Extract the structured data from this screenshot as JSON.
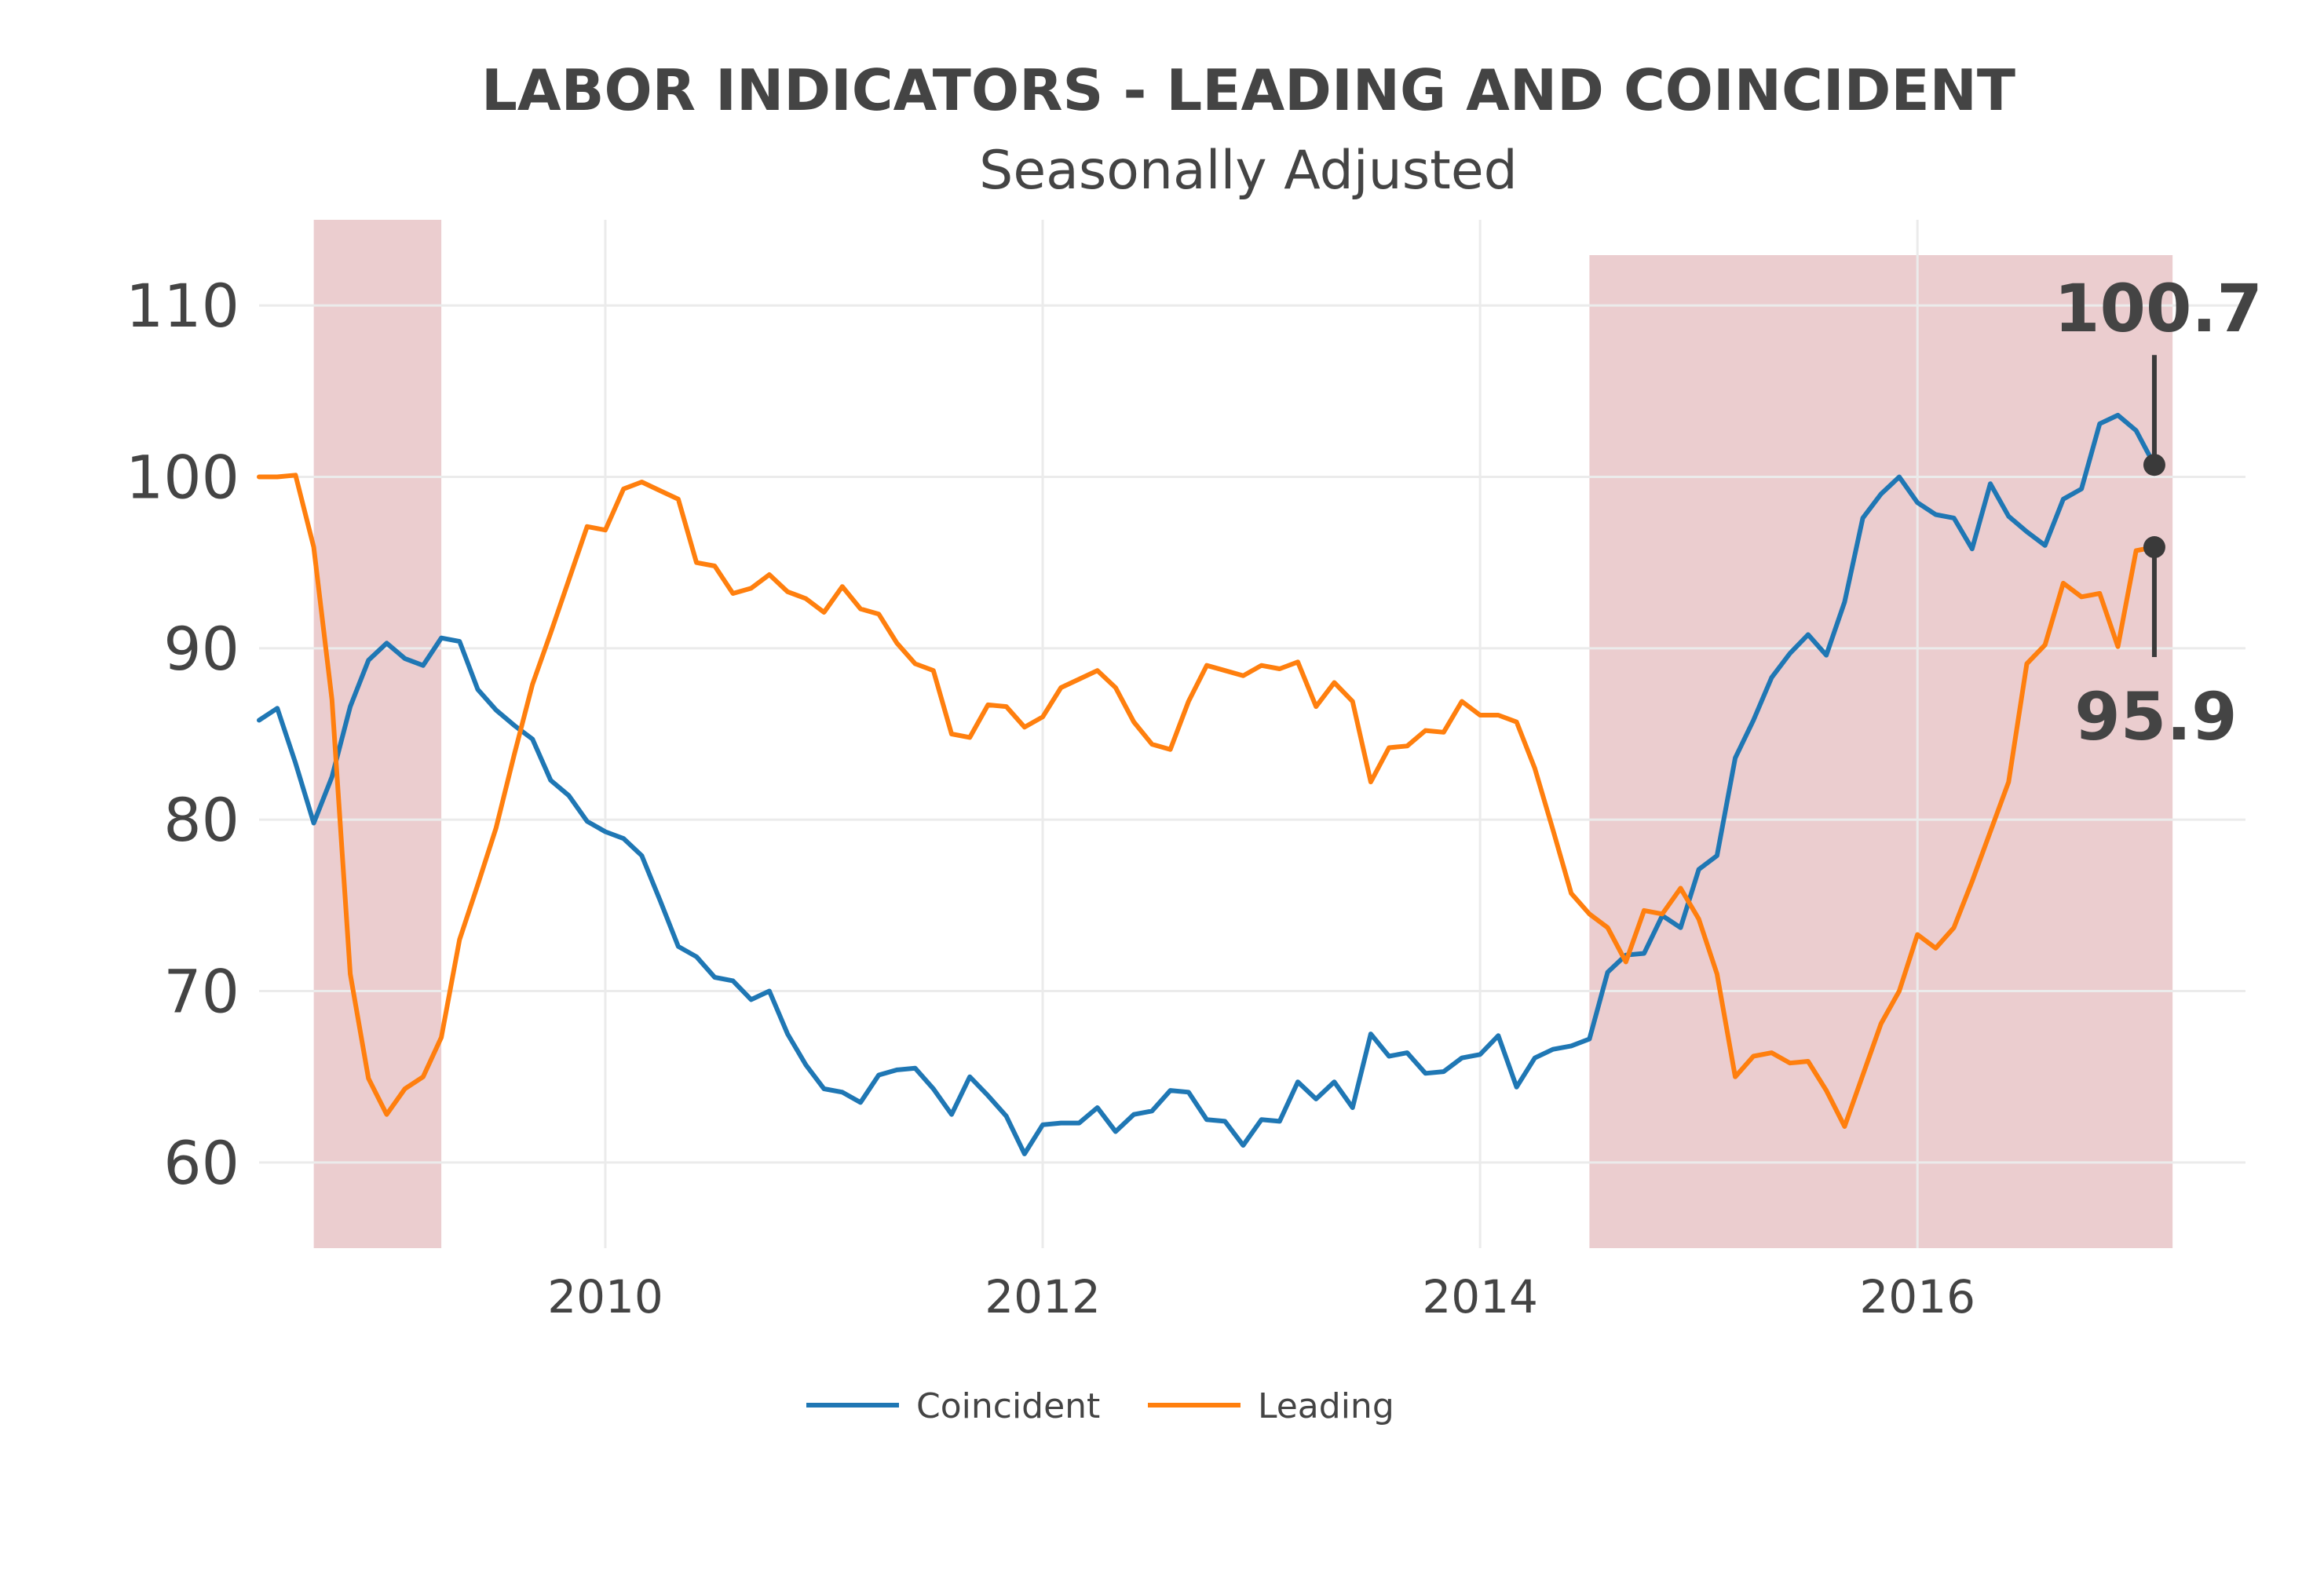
{
  "chart_data": {
    "type": "line",
    "title": "LABOR INDICATORS - LEADING AND COINCIDENT",
    "subtitle": "Seasonally Adjusted",
    "xlabel": "",
    "ylabel": "",
    "x_ticks": [
      "2010",
      "2012",
      "2014",
      "2016"
    ],
    "y_ticks": [
      "60",
      "70",
      "80",
      "90",
      "100",
      "110"
    ],
    "ylim": [
      55,
      115
    ],
    "xlim": [
      "2008-06",
      "2017-07"
    ],
    "grid": true,
    "legend_position": "bottom",
    "shaded_regions": [
      {
        "start": "2008-09",
        "end": "2009-04"
      },
      {
        "start": "2014-07",
        "end": "2017-03"
      }
    ],
    "series": [
      {
        "name": "Coincident",
        "color": "#1f77b4",
        "points": [
          [
            "2008-06",
            85.8
          ],
          [
            "2008-07",
            86.5
          ],
          [
            "2008-08",
            83.3
          ],
          [
            "2008-09",
            79.8
          ],
          [
            "2008-10",
            82.5
          ],
          [
            "2008-11",
            86.6
          ],
          [
            "2008-12",
            89.3
          ],
          [
            "2009-01",
            90.3
          ],
          [
            "2009-02",
            89.4
          ],
          [
            "2009-03",
            89.0
          ],
          [
            "2009-04",
            90.6
          ],
          [
            "2009-05",
            90.4
          ],
          [
            "2009-06",
            87.6
          ],
          [
            "2009-07",
            86.4
          ],
          [
            "2009-08",
            85.5
          ],
          [
            "2009-09",
            84.7
          ],
          [
            "2009-10",
            82.3
          ],
          [
            "2009-11",
            81.4
          ],
          [
            "2009-12",
            79.9
          ],
          [
            "2010-01",
            79.3
          ],
          [
            "2010-02",
            78.9
          ],
          [
            "2010-03",
            77.9
          ],
          [
            "2010-04",
            75.3
          ],
          [
            "2010-05",
            72.6
          ],
          [
            "2010-06",
            72.0
          ],
          [
            "2010-07",
            70.8
          ],
          [
            "2010-08",
            70.6
          ],
          [
            "2010-09",
            69.5
          ],
          [
            "2010-10",
            70.0
          ],
          [
            "2010-11",
            67.5
          ],
          [
            "2010-12",
            65.7
          ],
          [
            "2011-01",
            64.3
          ],
          [
            "2011-02",
            64.1
          ],
          [
            "2011-03",
            63.5
          ],
          [
            "2011-04",
            65.1
          ],
          [
            "2011-05",
            65.4
          ],
          [
            "2011-06",
            65.5
          ],
          [
            "2011-07",
            64.3
          ],
          [
            "2011-08",
            62.8
          ],
          [
            "2011-09",
            65.0
          ],
          [
            "2011-10",
            63.9
          ],
          [
            "2011-11",
            62.7
          ],
          [
            "2011-12",
            60.5
          ],
          [
            "2012-01",
            62.2
          ],
          [
            "2012-02",
            62.3
          ],
          [
            "2012-03",
            62.3
          ],
          [
            "2012-04",
            63.2
          ],
          [
            "2012-05",
            61.8
          ],
          [
            "2012-06",
            62.8
          ],
          [
            "2012-07",
            63.0
          ],
          [
            "2012-08",
            64.2
          ],
          [
            "2012-09",
            64.1
          ],
          [
            "2012-10",
            62.5
          ],
          [
            "2012-11",
            62.4
          ],
          [
            "2012-12",
            61.0
          ],
          [
            "2013-01",
            62.5
          ],
          [
            "2013-02",
            62.4
          ],
          [
            "2013-03",
            64.7
          ],
          [
            "2013-04",
            63.7
          ],
          [
            "2013-05",
            64.7
          ],
          [
            "2013-06",
            63.2
          ],
          [
            "2013-07",
            67.5
          ],
          [
            "2013-08",
            66.2
          ],
          [
            "2013-09",
            66.4
          ],
          [
            "2013-10",
            65.2
          ],
          [
            "2013-11",
            65.3
          ],
          [
            "2013-12",
            66.1
          ],
          [
            "2014-01",
            66.3
          ],
          [
            "2014-02",
            67.4
          ],
          [
            "2014-03",
            64.4
          ],
          [
            "2014-04",
            66.1
          ],
          [
            "2014-05",
            66.6
          ],
          [
            "2014-06",
            66.8
          ],
          [
            "2014-07",
            67.2
          ],
          [
            "2014-08",
            71.1
          ],
          [
            "2014-09",
            72.1
          ],
          [
            "2014-10",
            72.2
          ],
          [
            "2014-11",
            74.4
          ],
          [
            "2014-12",
            73.7
          ],
          [
            "2015-01",
            77.1
          ],
          [
            "2015-02",
            77.9
          ],
          [
            "2015-03",
            83.6
          ],
          [
            "2015-04",
            85.8
          ],
          [
            "2015-05",
            88.3
          ],
          [
            "2015-06",
            89.7
          ],
          [
            "2015-07",
            90.8
          ],
          [
            "2015-08",
            89.6
          ],
          [
            "2015-09",
            92.7
          ],
          [
            "2015-10",
            97.6
          ],
          [
            "2015-11",
            99.0
          ],
          [
            "2015-12",
            100.0
          ],
          [
            "2016-01",
            98.5
          ],
          [
            "2016-02",
            97.8
          ],
          [
            "2016-03",
            97.6
          ],
          [
            "2016-04",
            95.8
          ],
          [
            "2016-05",
            99.6
          ],
          [
            "2016-06",
            97.7
          ],
          [
            "2016-07",
            96.8
          ],
          [
            "2016-08",
            96.0
          ],
          [
            "2016-09",
            98.7
          ],
          [
            "2016-10",
            99.3
          ],
          [
            "2016-11",
            103.1
          ],
          [
            "2016-12",
            103.6
          ],
          [
            "2017-01",
            102.7
          ],
          [
            "2017-02",
            100.7
          ]
        ]
      },
      {
        "name": "Leading",
        "color": "#ff7f0e",
        "points": [
          [
            "2008-06",
            100.0
          ],
          [
            "2008-07",
            100.0
          ],
          [
            "2008-08",
            100.1
          ],
          [
            "2008-09",
            95.9
          ],
          [
            "2008-10",
            87.0
          ],
          [
            "2008-11",
            71.0
          ],
          [
            "2008-12",
            64.9
          ],
          [
            "2009-01",
            62.8
          ],
          [
            "2009-02",
            64.3
          ],
          [
            "2009-03",
            65.0
          ],
          [
            "2009-04",
            67.3
          ],
          [
            "2009-05",
            73.0
          ],
          [
            "2009-06",
            76.2
          ],
          [
            "2009-07",
            79.5
          ],
          [
            "2009-08",
            83.8
          ],
          [
            "2009-09",
            87.9
          ],
          [
            "2009-10",
            90.9
          ],
          [
            "2009-11",
            94.0
          ],
          [
            "2009-12",
            97.1
          ],
          [
            "2010-01",
            96.9
          ],
          [
            "2010-02",
            99.3
          ],
          [
            "2010-03",
            99.7
          ],
          [
            "2010-04",
            99.2
          ],
          [
            "2010-05",
            98.7
          ],
          [
            "2010-06",
            95.0
          ],
          [
            "2010-07",
            94.8
          ],
          [
            "2010-08",
            93.2
          ],
          [
            "2010-09",
            93.5
          ],
          [
            "2010-10",
            94.3
          ],
          [
            "2010-11",
            93.3
          ],
          [
            "2010-12",
            92.9
          ],
          [
            "2011-01",
            92.1
          ],
          [
            "2011-02",
            93.6
          ],
          [
            "2011-03",
            92.3
          ],
          [
            "2011-04",
            92.0
          ],
          [
            "2011-05",
            90.3
          ],
          [
            "2011-06",
            89.1
          ],
          [
            "2011-07",
            88.7
          ],
          [
            "2011-08",
            85.0
          ],
          [
            "2011-09",
            84.8
          ],
          [
            "2011-10",
            86.7
          ],
          [
            "2011-11",
            86.6
          ],
          [
            "2011-12",
            85.4
          ],
          [
            "2012-01",
            86.0
          ],
          [
            "2012-02",
            87.7
          ],
          [
            "2012-03",
            88.2
          ],
          [
            "2012-04",
            88.7
          ],
          [
            "2012-05",
            87.7
          ],
          [
            "2012-06",
            85.7
          ],
          [
            "2012-07",
            84.4
          ],
          [
            "2012-08",
            84.1
          ],
          [
            "2012-09",
            86.9
          ],
          [
            "2012-10",
            89.0
          ],
          [
            "2012-11",
            88.7
          ],
          [
            "2012-12",
            88.4
          ],
          [
            "2013-01",
            89.0
          ],
          [
            "2013-02",
            88.8
          ],
          [
            "2013-03",
            89.2
          ],
          [
            "2013-04",
            86.6
          ],
          [
            "2013-05",
            88.0
          ],
          [
            "2013-06",
            86.9
          ],
          [
            "2013-07",
            82.2
          ],
          [
            "2013-08",
            84.2
          ],
          [
            "2013-09",
            84.3
          ],
          [
            "2013-10",
            85.2
          ],
          [
            "2013-11",
            85.1
          ],
          [
            "2013-12",
            86.9
          ],
          [
            "2014-01",
            86.1
          ],
          [
            "2014-02",
            86.1
          ],
          [
            "2014-03",
            85.7
          ],
          [
            "2014-04",
            83.0
          ],
          [
            "2014-05",
            79.4
          ],
          [
            "2014-06",
            75.7
          ],
          [
            "2014-07",
            74.5
          ],
          [
            "2014-08",
            73.7
          ],
          [
            "2014-09",
            71.7
          ],
          [
            "2014-10",
            74.7
          ],
          [
            "2014-11",
            74.5
          ],
          [
            "2014-12",
            76.0
          ],
          [
            "2015-01",
            74.2
          ],
          [
            "2015-02",
            71.0
          ],
          [
            "2015-03",
            65.0
          ],
          [
            "2015-04",
            66.2
          ],
          [
            "2015-05",
            66.4
          ],
          [
            "2015-06",
            65.8
          ],
          [
            "2015-07",
            65.9
          ],
          [
            "2015-08",
            64.2
          ],
          [
            "2015-09",
            62.1
          ],
          [
            "2015-10",
            65.1
          ],
          [
            "2015-11",
            68.1
          ],
          [
            "2015-12",
            70.0
          ],
          [
            "2016-01",
            73.3
          ],
          [
            "2016-02",
            72.5
          ],
          [
            "2016-03",
            73.7
          ],
          [
            "2016-04",
            76.4
          ],
          [
            "2016-05",
            79.3
          ],
          [
            "2016-06",
            82.2
          ],
          [
            "2016-07",
            89.1
          ],
          [
            "2016-08",
            90.2
          ],
          [
            "2016-09",
            93.8
          ],
          [
            "2016-10",
            93.0
          ],
          [
            "2016-11",
            93.2
          ],
          [
            "2016-12",
            90.1
          ],
          [
            "2017-01",
            95.7
          ],
          [
            "2017-02",
            95.9
          ]
        ]
      }
    ],
    "annotations": [
      {
        "text": "100.7",
        "series": "Coincident",
        "date": "2017-02",
        "value": 100.7,
        "placement": "above"
      },
      {
        "text": "95.9",
        "series": "Leading",
        "date": "2017-02",
        "value": 95.9,
        "placement": "below"
      }
    ],
    "colors": {
      "grid": "#ebebeb",
      "shade": "#c0646b",
      "text": "#444444",
      "annotation_marker": "#3a3a3a"
    }
  }
}
